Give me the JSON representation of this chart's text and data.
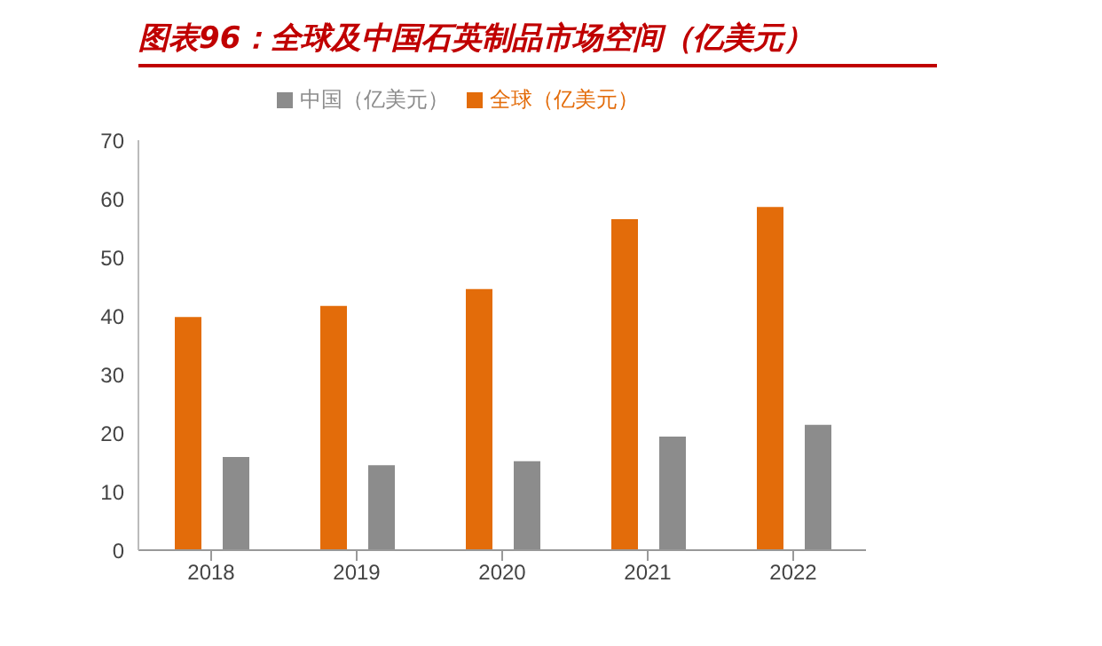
{
  "chart_data": {
    "type": "bar",
    "title": "图表96：全球及中国石英制品市场空间（亿美元）",
    "categories": [
      "2018",
      "2019",
      "2020",
      "2021",
      "2022"
    ],
    "series": [
      {
        "name": "全球（亿美元）",
        "color": "#e36c0a",
        "values": [
          39.8,
          41.7,
          44.6,
          56.5,
          58.6
        ]
      },
      {
        "name": "中国（亿美元）",
        "color": "#8c8c8c",
        "values": [
          15.9,
          14.5,
          15.2,
          19.4,
          21.4
        ]
      }
    ],
    "ylim": [
      0,
      70
    ],
    "yticks": [
      0,
      10,
      20,
      30,
      40,
      50,
      60,
      70
    ],
    "grid": false,
    "legend": "top"
  }
}
